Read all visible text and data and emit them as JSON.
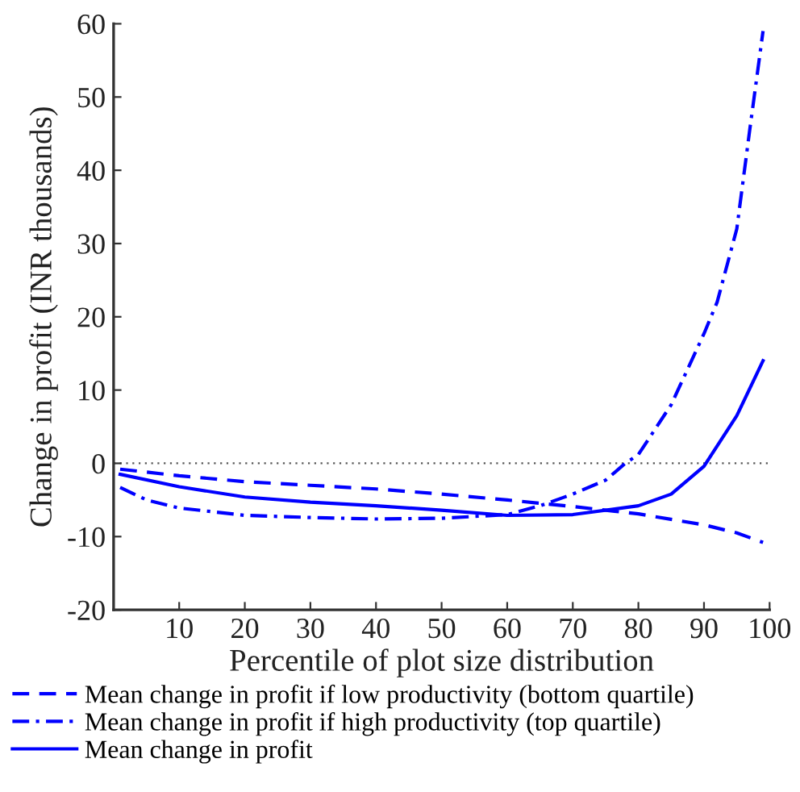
{
  "chart_data": {
    "type": "line",
    "xlabel": "Percentile of plot size distribution",
    "ylabel": "Change in profit (INR thousands)",
    "xlim": [
      0,
      100
    ],
    "ylim": [
      -20,
      60
    ],
    "xticks": [
      10,
      20,
      30,
      40,
      50,
      60,
      70,
      80,
      90,
      100
    ],
    "yticks": [
      -20,
      -10,
      0,
      10,
      20,
      30,
      40,
      50,
      60
    ],
    "grid": false,
    "legend": "bottom",
    "marker": "none",
    "ref_lines": [
      {
        "axis": "y",
        "value": 0,
        "color": "#555555",
        "line_style": "dotted"
      }
    ],
    "series": [
      {
        "name": "Mean change in profit if low productivity (bottom quartile)",
        "color": "#0000ff",
        "line_style": "dashed",
        "x": [
          1,
          10,
          20,
          30,
          40,
          50,
          60,
          70,
          80,
          90,
          95,
          99
        ],
        "values": [
          -0.8,
          -1.7,
          -2.5,
          -3.0,
          -3.5,
          -4.2,
          -5.0,
          -5.9,
          -6.9,
          -8.4,
          -9.5,
          -10.8
        ]
      },
      {
        "name": "Mean change in profit if high productivity (top quartile)",
        "color": "#0000ff",
        "line_style": "dashdot",
        "x": [
          1,
          5,
          10,
          20,
          30,
          40,
          50,
          60,
          65,
          70,
          75,
          78,
          80,
          85,
          90,
          92,
          95,
          97,
          99
        ],
        "values": [
          -3.3,
          -5.0,
          -6.1,
          -7.1,
          -7.4,
          -7.6,
          -7.5,
          -7.0,
          -5.8,
          -4.2,
          -2.3,
          0,
          1.2,
          8,
          17.7,
          22,
          32,
          45.7,
          59
        ]
      },
      {
        "name": "Mean change in profit",
        "color": "#0000ff",
        "line_style": "solid",
        "x": [
          1,
          10,
          20,
          30,
          40,
          50,
          60,
          70,
          80,
          85,
          90,
          95,
          99
        ],
        "values": [
          -1.5,
          -3.2,
          -4.6,
          -5.3,
          -5.8,
          -6.4,
          -7.1,
          -7.0,
          -5.8,
          -4.2,
          -0.4,
          6.5,
          14
        ]
      }
    ]
  }
}
